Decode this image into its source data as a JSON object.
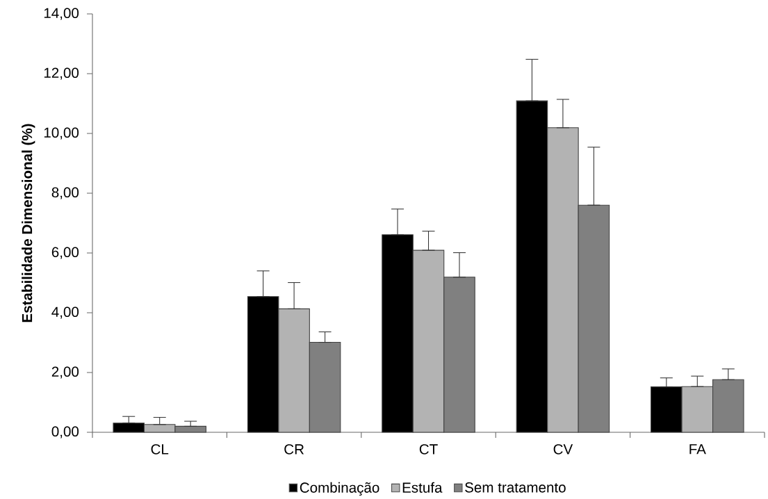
{
  "chart_data": {
    "type": "bar",
    "ylabel": "Estabilidade Dimensional (%)",
    "categories": [
      "CL",
      "CR",
      "CT",
      "CV",
      "FA"
    ],
    "series": [
      {
        "name": "Combinação",
        "color": "#000000",
        "values": [
          0.31,
          4.54,
          6.61,
          11.09,
          1.52
        ],
        "errors": [
          [
            0.31,
            0.53
          ],
          [
            4.54,
            5.4
          ],
          [
            6.61,
            7.47
          ],
          [
            11.09,
            12.48
          ],
          [
            1.52,
            1.82
          ]
        ]
      },
      {
        "name": "Estufa",
        "color": "#b3b3b3",
        "values": [
          0.26,
          4.13,
          6.09,
          10.19,
          1.53
        ],
        "errors": [
          [
            0.26,
            0.5
          ],
          [
            4.13,
            5.01
          ],
          [
            6.09,
            6.73
          ],
          [
            10.19,
            11.14
          ],
          [
            1.53,
            1.88
          ]
        ]
      },
      {
        "name": "Sem tratamento",
        "color": "#808080",
        "values": [
          0.2,
          3.01,
          5.19,
          7.6,
          1.76
        ],
        "errors": [
          [
            0.2,
            0.37
          ],
          [
            3.01,
            3.36
          ],
          [
            5.19,
            6.01
          ],
          [
            7.6,
            9.54
          ],
          [
            1.76,
            2.12
          ]
        ]
      }
    ],
    "ylim": [
      0,
      14
    ],
    "yticks": [
      {
        "value": 0,
        "label": "0,00"
      },
      {
        "value": 2,
        "label": "2,00"
      },
      {
        "value": 4,
        "label": "4,00"
      },
      {
        "value": 6,
        "label": "6,00"
      },
      {
        "value": 8,
        "label": "8,00"
      },
      {
        "value": 10,
        "label": "10,00"
      },
      {
        "value": 12,
        "label": "12,00"
      },
      {
        "value": 14,
        "label": "14,00"
      }
    ],
    "legend": "bottom",
    "grid": false
  }
}
